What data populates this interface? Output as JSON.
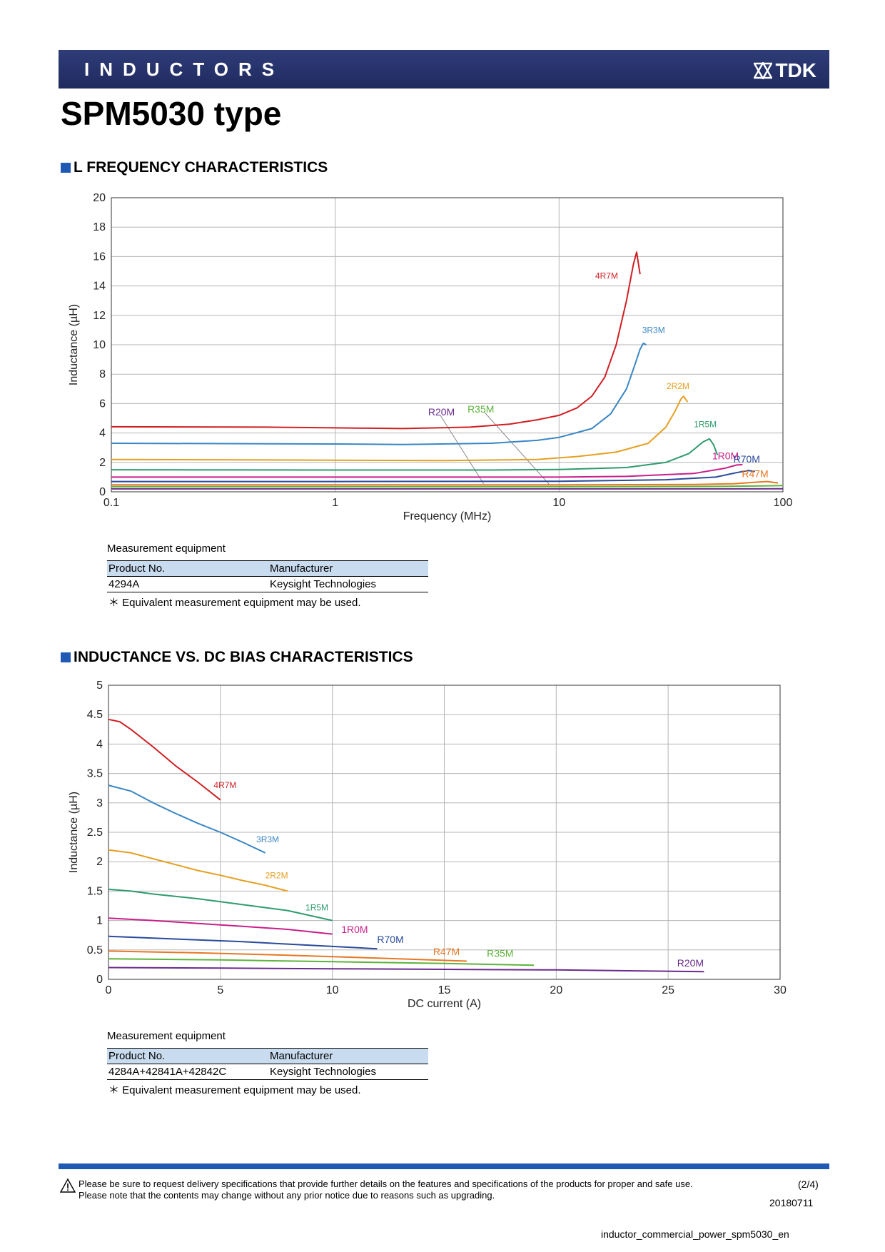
{
  "header": {
    "category": "INDUCTORS",
    "brand": "TDK"
  },
  "page_title": "SPM5030 type",
  "sections": {
    "freq_title": "L FREQUENCY CHARACTERISTICS",
    "dc_title": "INDUCTANCE VS. DC BIAS CHARACTERISTICS"
  },
  "equipment1": {
    "caption": "Measurement equipment",
    "col_product": "Product No.",
    "col_manufacturer": "Manufacturer",
    "product": "4294A",
    "manufacturer": "Keysight Technologies",
    "note": "＊ Equivalent measurement equipment may be used."
  },
  "equipment2": {
    "caption": "Measurement equipment",
    "col_product": "Product No.",
    "col_manufacturer": "Manufacturer",
    "product": "4284A+42841A+42842C",
    "manufacturer": "Keysight Technologies",
    "note": "＊ Equivalent measurement equipment may be used."
  },
  "chart_data": [
    {
      "type": "line",
      "title": "L FREQUENCY CHARACTERISTICS",
      "xlabel": "Frequency (MHz)",
      "ylabel": "Inductance (µH)",
      "xscale": "log",
      "xlim": [
        0.1,
        100
      ],
      "ylim": [
        0,
        20
      ],
      "xticks": [
        "0.1",
        "1",
        "10",
        "100"
      ],
      "yticks": [
        "0",
        "2",
        "4",
        "6",
        "8",
        "10",
        "12",
        "14",
        "16",
        "18",
        "20"
      ],
      "grid": true,
      "series": [
        {
          "name": "4R7M",
          "color": "#d01f24",
          "points": [
            [
              0.1,
              4.42
            ],
            [
              0.5,
              4.4
            ],
            [
              1,
              4.35
            ],
            [
              2,
              4.3
            ],
            [
              4,
              4.4
            ],
            [
              6,
              4.6
            ],
            [
              8,
              4.9
            ],
            [
              10,
              5.2
            ],
            [
              12,
              5.7
            ],
            [
              14,
              6.5
            ],
            [
              16,
              7.8
            ],
            [
              18,
              10
            ],
            [
              20,
              13
            ],
            [
              21.5,
              15.5
            ],
            [
              22.2,
              16.3
            ],
            [
              23,
              14.8
            ]
          ]
        },
        {
          "name": "3R3M",
          "color": "#3a86c4",
          "points": [
            [
              0.1,
              3.3
            ],
            [
              1,
              3.25
            ],
            [
              2,
              3.22
            ],
            [
              5,
              3.3
            ],
            [
              8,
              3.5
            ],
            [
              10,
              3.7
            ],
            [
              14,
              4.3
            ],
            [
              17,
              5.3
            ],
            [
              20,
              7
            ],
            [
              22,
              8.8
            ],
            [
              23,
              9.7
            ],
            [
              23.8,
              10.1
            ],
            [
              24.5,
              10.0
            ]
          ]
        },
        {
          "name": "2R2M",
          "color": "#e5a020",
          "points": [
            [
              0.1,
              2.2
            ],
            [
              1,
              2.15
            ],
            [
              3,
              2.12
            ],
            [
              8,
              2.2
            ],
            [
              12,
              2.4
            ],
            [
              18,
              2.7
            ],
            [
              25,
              3.3
            ],
            [
              30,
              4.4
            ],
            [
              33,
              5.5
            ],
            [
              35,
              6.3
            ],
            [
              36,
              6.5
            ],
            [
              37.5,
              6.1
            ]
          ]
        },
        {
          "name": "1R5M",
          "color": "#2f9b6e",
          "points": [
            [
              0.1,
              1.5
            ],
            [
              1,
              1.48
            ],
            [
              5,
              1.48
            ],
            [
              10,
              1.52
            ],
            [
              20,
              1.65
            ],
            [
              30,
              2.0
            ],
            [
              38,
              2.6
            ],
            [
              44,
              3.4
            ],
            [
              47,
              3.6
            ],
            [
              49,
              3.2
            ],
            [
              51,
              2.5
            ]
          ]
        },
        {
          "name": "1R0M",
          "color": "#c71f8a",
          "points": [
            [
              0.1,
              1.0
            ],
            [
              1,
              1.0
            ],
            [
              10,
              1.0
            ],
            [
              20,
              1.05
            ],
            [
              40,
              1.25
            ],
            [
              55,
              1.6
            ],
            [
              62,
              1.82
            ],
            [
              66,
              1.85
            ]
          ]
        },
        {
          "name": "R70M",
          "color": "#2a4a9b",
          "points": [
            [
              0.1,
              0.7
            ],
            [
              1,
              0.7
            ],
            [
              10,
              0.72
            ],
            [
              30,
              0.82
            ],
            [
              50,
              1.0
            ],
            [
              62,
              1.3
            ],
            [
              70,
              1.45
            ],
            [
              75,
              1.38
            ]
          ]
        },
        {
          "name": "R47M",
          "color": "#e87722",
          "points": [
            [
              0.1,
              0.47
            ],
            [
              1,
              0.47
            ],
            [
              10,
              0.47
            ],
            [
              40,
              0.5
            ],
            [
              60,
              0.55
            ],
            [
              75,
              0.65
            ],
            [
              85,
              0.7
            ],
            [
              95,
              0.6
            ]
          ]
        },
        {
          "name": "R35M",
          "color": "#5db33b",
          "points": [
            [
              0.1,
              0.35
            ],
            [
              1,
              0.35
            ],
            [
              10,
              0.35
            ],
            [
              50,
              0.37
            ],
            [
              80,
              0.4
            ],
            [
              100,
              0.42
            ]
          ]
        },
        {
          "name": "R20M",
          "color": "#6a2b8a",
          "points": [
            [
              0.1,
              0.2
            ],
            [
              1,
              0.2
            ],
            [
              10,
              0.2
            ],
            [
              50,
              0.2
            ],
            [
              100,
              0.21
            ]
          ]
        }
      ],
      "labels": [
        {
          "text": "4R7M",
          "color": "#d01f24",
          "at": [
            14.5,
            14.5
          ]
        },
        {
          "text": "3R3M",
          "color": "#3a86c4",
          "at": [
            23.5,
            10.8
          ]
        },
        {
          "text": "2R2M",
          "color": "#e5a020",
          "at": [
            30.2,
            7.0
          ]
        },
        {
          "text": "1R5M",
          "color": "#2f9b6e",
          "at": [
            40.0,
            4.4
          ]
        },
        {
          "text": "1R0M",
          "color": "#c71f8a",
          "at": [
            48.3,
            2.2
          ]
        },
        {
          "text": "R70M",
          "color": "#2a4a9b",
          "at": [
            60.1,
            2.0
          ]
        },
        {
          "text": "R47M",
          "color": "#e87722",
          "at": [
            65.5,
            1.0
          ]
        },
        {
          "text": "R20M",
          "color": "#6a2b8a",
          "at": [
            2.6,
            5.2
          ]
        },
        {
          "text": "R35M",
          "color": "#5db33b",
          "at": [
            3.9,
            5.4
          ]
        }
      ],
      "leaders": [
        {
          "color": "#888888",
          "from": [
            2.95,
            5.2
          ],
          "to": [
            4.6,
            0.55
          ]
        },
        {
          "color": "#888888",
          "from": [
            4.65,
            5.4
          ],
          "to": [
            9.1,
            0.45
          ]
        }
      ]
    },
    {
      "type": "line",
      "title": "INDUCTANCE VS. DC BIAS CHARACTERISTICS",
      "xlabel": "DC current (A)",
      "ylabel": "Inductance (µH)",
      "xlim": [
        0,
        30
      ],
      "ylim": [
        0,
        5
      ],
      "xticks": [
        "0",
        "5",
        "10",
        "15",
        "20",
        "25",
        "30"
      ],
      "yticks": [
        "0",
        "0.5",
        "1",
        "1.5",
        "2",
        "2.5",
        "3",
        "3.5",
        "4",
        "4.5",
        "5"
      ],
      "grid": true,
      "series": [
        {
          "name": "4R7M",
          "color": "#d01f24",
          "points": [
            [
              0,
              4.42
            ],
            [
              0.5,
              4.38
            ],
            [
              1,
              4.25
            ],
            [
              2,
              3.95
            ],
            [
              3,
              3.63
            ],
            [
              4,
              3.35
            ],
            [
              5,
              3.05
            ]
          ]
        },
        {
          "name": "3R3M",
          "color": "#3a86c4",
          "points": [
            [
              0,
              3.3
            ],
            [
              1,
              3.2
            ],
            [
              2,
              3.0
            ],
            [
              3,
              2.82
            ],
            [
              4,
              2.65
            ],
            [
              5,
              2.5
            ],
            [
              6,
              2.33
            ],
            [
              7,
              2.15
            ]
          ]
        },
        {
          "name": "2R2M",
          "color": "#e5a020",
          "points": [
            [
              0,
              2.2
            ],
            [
              1,
              2.15
            ],
            [
              2,
              2.05
            ],
            [
              3,
              1.95
            ],
            [
              4,
              1.85
            ],
            [
              5,
              1.77
            ],
            [
              6,
              1.68
            ],
            [
              7,
              1.6
            ],
            [
              8,
              1.5
            ]
          ]
        },
        {
          "name": "1R5M",
          "color": "#2f9b6e",
          "points": [
            [
              0,
              1.53
            ],
            [
              1,
              1.5
            ],
            [
              2,
              1.45
            ],
            [
              4,
              1.37
            ],
            [
              6,
              1.27
            ],
            [
              8,
              1.17
            ],
            [
              10,
              1.0
            ]
          ]
        },
        {
          "name": "1R0M",
          "color": "#c71f8a",
          "points": [
            [
              0,
              1.04
            ],
            [
              2,
              1.0
            ],
            [
              4,
              0.95
            ],
            [
              6,
              0.9
            ],
            [
              8,
              0.85
            ],
            [
              10,
              0.77
            ]
          ]
        },
        {
          "name": "R70M",
          "color": "#2a4a9b",
          "points": [
            [
              0,
              0.73
            ],
            [
              2,
              0.7
            ],
            [
              4,
              0.67
            ],
            [
              6,
              0.64
            ],
            [
              8,
              0.6
            ],
            [
              10,
              0.56
            ],
            [
              12,
              0.52
            ]
          ]
        },
        {
          "name": "R47M",
          "color": "#e87722",
          "points": [
            [
              0,
              0.48
            ],
            [
              4,
              0.45
            ],
            [
              8,
              0.41
            ],
            [
              12,
              0.36
            ],
            [
              16,
              0.31
            ]
          ]
        },
        {
          "name": "R35M",
          "color": "#5db33b",
          "points": [
            [
              0,
              0.35
            ],
            [
              5,
              0.33
            ],
            [
              10,
              0.3
            ],
            [
              15,
              0.27
            ],
            [
              19,
              0.24
            ]
          ]
        },
        {
          "name": "R20M",
          "color": "#6a2b8a",
          "points": [
            [
              0,
              0.2
            ],
            [
              5,
              0.19
            ],
            [
              10,
              0.18
            ],
            [
              15,
              0.17
            ],
            [
              20,
              0.16
            ],
            [
              26.6,
              0.13
            ]
          ]
        }
      ],
      "labels": [
        {
          "text": "4R7M",
          "color": "#d01f24",
          "at": [
            4.7,
            3.25
          ]
        },
        {
          "text": "3R3M",
          "color": "#3a86c4",
          "at": [
            6.6,
            2.33
          ]
        },
        {
          "text": "2R2M",
          "color": "#e5a020",
          "at": [
            7.0,
            1.72
          ]
        },
        {
          "text": "1R5M",
          "color": "#2f9b6e",
          "at": [
            8.8,
            1.17
          ]
        },
        {
          "text": "1R0M",
          "color": "#c71f8a",
          "at": [
            10.4,
            0.79
          ]
        },
        {
          "text": "R70M",
          "color": "#2a4a9b",
          "at": [
            12.0,
            0.62
          ]
        },
        {
          "text": "R47M",
          "color": "#e87722",
          "at": [
            14.5,
            0.41
          ]
        },
        {
          "text": "R35M",
          "color": "#5db33b",
          "at": [
            16.9,
            0.38
          ]
        },
        {
          "text": "R20M",
          "color": "#6a2b8a",
          "at": [
            25.4,
            0.22
          ]
        }
      ],
      "leaders": []
    }
  ],
  "footer": {
    "notice_line1": "Please be sure to request delivery specifications that provide further details on the features and specifications of the products for proper and safe use.",
    "notice_line2": "Please note that the contents may change without any prior notice due to reasons such as upgrading.",
    "page": "(2/4)",
    "date": "20180711",
    "filename": "inductor_commercial_power_spm5030_en"
  }
}
